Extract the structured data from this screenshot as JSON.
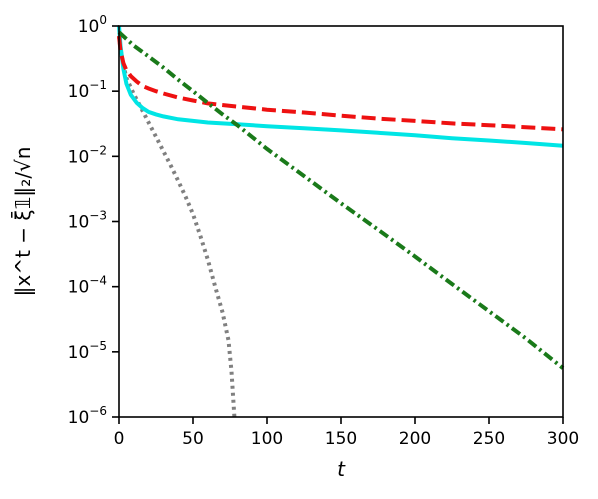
{
  "chart_data": {
    "type": "line",
    "xlabel": "t",
    "ylabel": "‖x^t − ξ̄𝟙‖₂/√n",
    "y_scale": "log",
    "xlim": [
      0,
      300
    ],
    "ylim": [
      1e-06,
      1
    ],
    "x_ticks": [
      0,
      50,
      100,
      150,
      200,
      250,
      300
    ],
    "y_ticks": [
      {
        "value": 1,
        "base": "10",
        "exp": "0"
      },
      {
        "value": 0.1,
        "base": "10",
        "exp": "−1"
      },
      {
        "value": 0.01,
        "base": "10",
        "exp": "−2"
      },
      {
        "value": 0.001,
        "base": "10",
        "exp": "−3"
      },
      {
        "value": 0.0001,
        "base": "10",
        "exp": "−4"
      },
      {
        "value": 1e-05,
        "base": "10",
        "exp": "−5"
      },
      {
        "value": 1e-06,
        "base": "10",
        "exp": "−6"
      }
    ],
    "grid": false,
    "legend": "none",
    "series": [
      {
        "color": "#808080",
        "style": "dotted",
        "x": [
          0,
          1,
          3,
          5,
          10,
          15,
          20,
          25,
          30,
          35,
          40,
          45,
          50,
          55,
          60,
          65,
          70,
          74,
          76,
          78
        ],
        "y": [
          0.7,
          0.45,
          0.25,
          0.16,
          0.09,
          0.055,
          0.033,
          0.02,
          0.012,
          0.0072,
          0.0042,
          0.0024,
          0.0013,
          0.0006,
          0.00026,
          0.0001,
          4e-05,
          1.5e-05,
          5e-06,
          1e-06
        ]
      },
      {
        "color": "#00e5e5",
        "style": "solid",
        "x": [
          0,
          1,
          3,
          5,
          8,
          12,
          16,
          20,
          25,
          30,
          40,
          50,
          60,
          80,
          100,
          125,
          150,
          175,
          200,
          225,
          250,
          275,
          300
        ],
        "y": [
          1.0,
          0.5,
          0.22,
          0.13,
          0.088,
          0.066,
          0.055,
          0.048,
          0.044,
          0.041,
          0.037,
          0.035,
          0.033,
          0.031,
          0.029,
          0.027,
          0.025,
          0.023,
          0.021,
          0.019,
          0.0175,
          0.016,
          0.0145
        ]
      },
      {
        "color": "#ee1111",
        "style": "dashed",
        "x": [
          0,
          1,
          3,
          5,
          8,
          12,
          16,
          20,
          25,
          30,
          40,
          50,
          60,
          80,
          100,
          125,
          150,
          175,
          200,
          225,
          250,
          275,
          300
        ],
        "y": [
          0.7,
          0.42,
          0.27,
          0.21,
          0.17,
          0.14,
          0.12,
          0.11,
          0.1,
          0.092,
          0.08,
          0.072,
          0.065,
          0.058,
          0.052,
          0.047,
          0.042,
          0.038,
          0.035,
          0.032,
          0.03,
          0.028,
          0.026
        ]
      },
      {
        "color": "#1a7a1a",
        "style": "dashdot",
        "x": [
          0,
          10,
          20,
          30,
          40,
          50,
          60,
          70,
          80,
          100,
          125,
          150,
          175,
          200,
          225,
          250,
          275,
          300
        ],
        "y": [
          0.8,
          0.5,
          0.34,
          0.23,
          0.15,
          0.1,
          0.066,
          0.044,
          0.03,
          0.013,
          0.005,
          0.0019,
          0.00075,
          0.00029,
          0.00011,
          4.2e-05,
          1.6e-05,
          5.6e-06
        ]
      }
    ]
  }
}
